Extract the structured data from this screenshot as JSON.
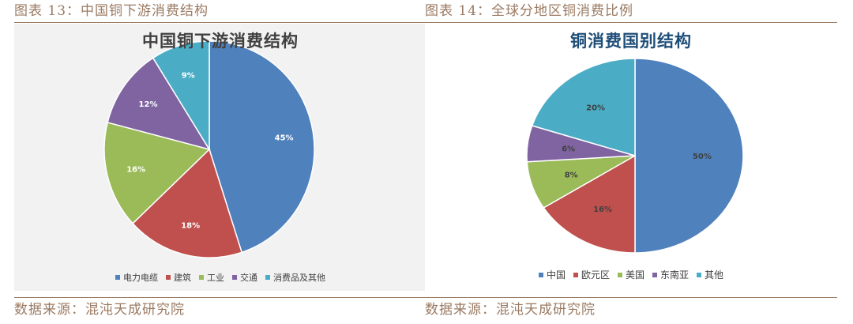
{
  "figures": [
    {
      "caption": "图表 13：中国铜下游消费结构",
      "source": "数据来源：混沌天成研究院"
    },
    {
      "caption": "图表 14：全球分地区铜消费比例",
      "source": "数据来源：混沌天成研究院"
    }
  ],
  "chart_data": [
    {
      "type": "pie",
      "title": "中国铜下游消费结构",
      "categories": [
        "电力电缆",
        "建筑",
        "工业",
        "交通",
        "消费品及其他"
      ],
      "values": [
        45,
        18,
        16,
        12,
        9
      ],
      "labels": [
        "45%",
        "18%",
        "16%",
        "12%",
        "9%"
      ],
      "colors": [
        "#4f81bd",
        "#c0504d",
        "#9bbb59",
        "#8064a2",
        "#4bacc6"
      ],
      "legend": "bottom"
    },
    {
      "type": "pie",
      "title": "铜消费国别结构",
      "categories": [
        "中国",
        "欧元区",
        "美国",
        "东南亚",
        "其他"
      ],
      "values": [
        50,
        16,
        8,
        6,
        20
      ],
      "labels": [
        "50%",
        "16%",
        "8%",
        "6%",
        "20%"
      ],
      "colors": [
        "#4f81bd",
        "#c0504d",
        "#9bbb59",
        "#8064a2",
        "#4bacc6"
      ],
      "legend": "bottom"
    }
  ]
}
